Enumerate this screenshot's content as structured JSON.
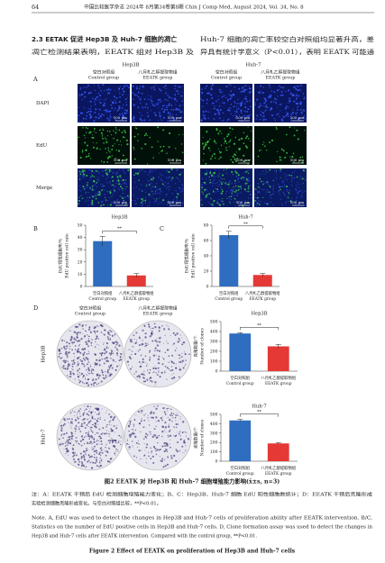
{
  "header": {
    "page": "64",
    "journal": "中国比较医学杂志 2024年 8月第34卷第8期  Chin J Comp Med, August 2024, Vol. 34, No. 8"
  },
  "section": {
    "heading": "2.3  EETAK 促进 Hep3B 及 Huh-7 细胞的凋亡",
    "left_line": "凋亡检测结果表明，EEATK 组对 Hep3B 及",
    "right_lines": [
      "Huh-7 细胞的凋亡率较空白对照组均显著升高，差",
      "异具有统计学意义（P<0.01），表明 EEATK 可能通"
    ]
  },
  "figure_a": {
    "panel": "A",
    "cell_lines": [
      "Hep3B",
      "Huh-7"
    ],
    "groups": [
      [
        "空白对照组",
        "Control group"
      ],
      [
        "八月札乙醇提取物组",
        "EEATK group"
      ]
    ],
    "rows": [
      "DAPI",
      "EdU",
      "Merge"
    ],
    "scale_bar": "100 μm"
  },
  "figure_d": {
    "panel": "D",
    "groups": [
      [
        "空白对照组",
        "Control group"
      ],
      [
        "八月札乙醇提取物组",
        "EEATK group"
      ]
    ],
    "rows": [
      "Hep3B",
      "Huh-7"
    ]
  },
  "chart_data": [
    {
      "type": "bar",
      "panel": "B",
      "title": "Hep3B",
      "y_label": [
        "EdU阳性细胞率/%",
        "EdU positive cell rate"
      ],
      "categories": [
        [
          "空白对照组",
          "Control group"
        ],
        [
          "八月札乙醇提取物组",
          "EEATK group"
        ]
      ],
      "values": [
        37,
        9
      ],
      "errors": [
        4,
        1.5
      ],
      "colors": [
        "#2e6dc0",
        "#e53935"
      ],
      "ylim": [
        0,
        50
      ],
      "yticks": [
        0,
        10,
        20,
        30,
        40,
        50
      ],
      "significance": "**"
    },
    {
      "type": "bar",
      "panel": "C",
      "title": "Huh-7",
      "y_label": [
        "EdU阳性细胞率/%",
        "EdU positive cell rate"
      ],
      "categories": [
        [
          "空白对照组",
          "Control group"
        ],
        [
          "八月札乙醇提取物组",
          "EEATK group"
        ]
      ],
      "values": [
        67,
        15
      ],
      "errors": [
        5,
        2
      ],
      "colors": [
        "#2e6dc0",
        "#e53935"
      ],
      "ylim": [
        0,
        80
      ],
      "yticks": [
        0,
        20,
        40,
        60,
        80
      ],
      "significance": "**"
    },
    {
      "type": "bar",
      "title": "Hep3B",
      "y_label": [
        "克隆数量/个",
        "Number of clones"
      ],
      "categories": [
        [
          "空白对照组",
          "Control group"
        ],
        [
          "八月札乙醇提取物组",
          "EEATK group"
        ]
      ],
      "values": [
        380,
        250
      ],
      "errors": [
        8,
        20
      ],
      "colors": [
        "#2e6dc0",
        "#e53935"
      ],
      "ylim": [
        0,
        500
      ],
      "yticks": [
        0,
        100,
        200,
        300,
        400,
        500
      ],
      "significance": "**"
    },
    {
      "type": "bar",
      "title": "Huh-7",
      "y_label": [
        "克隆数量/个",
        "Number of clones"
      ],
      "categories": [
        [
          "空白对照组",
          "Control group"
        ],
        [
          "八月札乙醇提取物组",
          "EEATK group"
        ]
      ],
      "values": [
        435,
        190
      ],
      "errors": [
        10,
        8
      ],
      "colors": [
        "#2e6dc0",
        "#e53935"
      ],
      "ylim": [
        0,
        500
      ],
      "yticks": [
        0,
        100,
        200,
        300,
        400,
        500
      ],
      "significance": "**"
    }
  ],
  "caption": {
    "title_cn": "图2  EEATK 对 Hep3B 和 Huh-7 细胞增殖能力影响(x̄±s, n=3)",
    "notes_cn": [
      "注：A：EEATK 干预后 EdU 检测细胞增殖能力变化；B、C：Hep3B、Huh-7 细胞 EdU 阳性细胞数统计；D：EEATK 干预后克隆形成",
      "实验检测细胞克隆形成变化。与空白对照组比较，**P<0.01。"
    ],
    "notes_en": [
      "Note. A, EdU was used to detect the changes in Hep3B and Huh-7 cells of proliferation ability after EEATK intervention. B/C,",
      "Statistics on the number of EdU positive cells in Hep3B and Huh-7 cells. D, Clone formation assay was used to detect the changes in",
      "Hep3B and Huh-7 cells after EEATK intervention. Compared with the control group, **P<0.01."
    ],
    "title_en": "Figure 2   Effect of EEATK on proliferation of Hep3B and Huh-7 cells"
  }
}
